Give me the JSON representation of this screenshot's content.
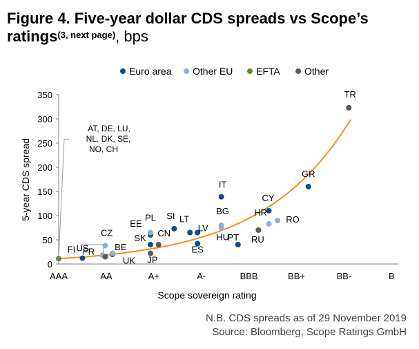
{
  "figure": {
    "title_bold": "Figure 4. Five-year dollar CDS spreads vs Scope’s ratings",
    "title_sup": "(3, next page)",
    "title_unit": ", bps"
  },
  "notes": {
    "line1": "N.B. CDS spreads as of 29 November 2019",
    "line2": "Source: Bloomberg, Scope Ratings GmbH"
  },
  "chart_data": {
    "type": "scatter",
    "xlabel": "Scope sovereign rating",
    "ylabel": "5-year CDS spread",
    "x_categories": [
      "AAA",
      "AA",
      "A+",
      "A-",
      "BBB",
      "BB+",
      "BB-",
      "B"
    ],
    "ylim": [
      0,
      350
    ],
    "yticks": [
      0,
      50,
      100,
      150,
      200,
      250,
      300,
      350
    ],
    "grid": false,
    "legend_position": "top",
    "legend": [
      {
        "name": "Euro area",
        "color": "#0b4d87"
      },
      {
        "name": "Other EU",
        "color": "#8fb0d3"
      },
      {
        "name": "EFTA",
        "color": "#5f8a3a"
      },
      {
        "name": "Other",
        "color": "#595959"
      }
    ],
    "series": [
      {
        "name": "Euro area",
        "color": "#0b4d87",
        "points": [
          {
            "label": "FI",
            "x": 0.5,
            "y": 12
          },
          {
            "label": "BE",
            "x": 1.13,
            "y": 20
          },
          {
            "label": "EE",
            "x": 1.93,
            "y": 60
          },
          {
            "label": "SK",
            "x": 1.93,
            "y": 40
          },
          {
            "label": "SI",
            "x": 2.43,
            "y": 73
          },
          {
            "label": "LT",
            "x": 2.76,
            "y": 65
          },
          {
            "label": "LV",
            "x": 2.92,
            "y": 65
          },
          {
            "label": "ES",
            "x": 2.92,
            "y": 42
          },
          {
            "label": "IT",
            "x": 3.42,
            "y": 139
          },
          {
            "label": "PT",
            "x": 3.77,
            "y": 40
          },
          {
            "label": "CY",
            "x": 4.42,
            "y": 110
          },
          {
            "label": "GR",
            "x": 5.25,
            "y": 160
          }
        ]
      },
      {
        "name": "Other EU",
        "color": "#8fb0d3",
        "points": [
          {
            "label": "UK",
            "x": 1.13,
            "y": 22
          },
          {
            "label": "CZ",
            "x": 0.98,
            "y": 38
          },
          {
            "label": "FR",
            "x": 0.92,
            "y": 18
          },
          {
            "label": "PL",
            "x": 1.93,
            "y": 65
          },
          {
            "label": "BG",
            "x": 3.42,
            "y": 80
          },
          {
            "label": "HU",
            "x": 3.42,
            "y": 75
          },
          {
            "label": "HR",
            "x": 4.42,
            "y": 83
          },
          {
            "label": "RO",
            "x": 4.6,
            "y": 90
          }
        ]
      },
      {
        "name": "EFTA",
        "color": "#5f8a3a",
        "points": [
          {
            "label": "AT, DE, LU, NL, DK, SE, NO, CH",
            "x": 0,
            "y": 11
          }
        ]
      },
      {
        "name": "Other",
        "color": "#595959",
        "points": [
          {
            "label": "US",
            "x": 0.98,
            "y": 15
          },
          {
            "label": "JP",
            "x": 1.93,
            "y": 22
          },
          {
            "label": "CN",
            "x": 2.1,
            "y": 40
          },
          {
            "label": "RU",
            "x": 4.2,
            "y": 70
          },
          {
            "label": "TR",
            "x": 6.1,
            "y": 323
          }
        ]
      }
    ],
    "annotations": [
      {
        "text": "AT, DE, LU,",
        "group": "AAA cluster"
      },
      {
        "text": "NL, DK, SE,",
        "group": "AAA cluster"
      },
      {
        "text": "NO, CH",
        "group": "AAA cluster"
      }
    ],
    "trendline": {
      "type": "exponential",
      "color": "#f0901e"
    }
  }
}
